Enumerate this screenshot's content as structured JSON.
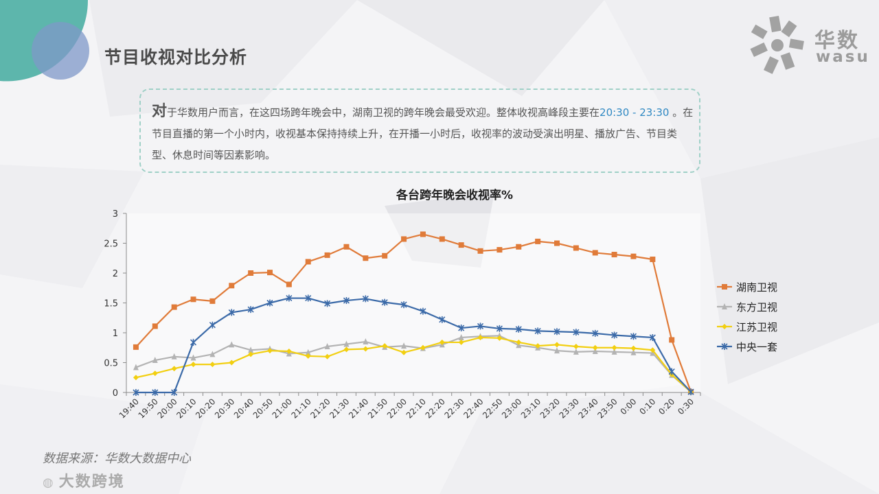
{
  "page": {
    "title": "节目收视对比分析",
    "logo_cn": "华数",
    "logo_en": "wasu",
    "note": {
      "lead": "对",
      "part1": "于华数用户而言，在这四场跨年晚会中，湖南卫视的跨年晚会最受欢迎。整体收视高峰段主要在",
      "highlight": "20:30 - 23:30",
      "part2": " 。在节目直播的第一个小时内，收视基本保持持续上升，在开播一小时后，收视率的波动受演出明星、播放广告、节目类型、休息时间等因素影响。"
    },
    "source": "数据来源：华数大数据中心",
    "brand": "大数跨境"
  },
  "chart_data": {
    "type": "line",
    "title": "各台跨年晚会收视率%",
    "xlabel": "",
    "ylabel": "",
    "ylim": [
      0,
      3
    ],
    "yticks": [
      "0",
      "0.5",
      "1",
      "1.5",
      "2",
      "2.5",
      "3"
    ],
    "grid": false,
    "legend_position": "right",
    "categories": [
      "19:40",
      "19:50",
      "20:00",
      "20:10",
      "20:20",
      "20:30",
      "20:40",
      "20:50",
      "21:00",
      "21:10",
      "21:20",
      "21:30",
      "21:40",
      "21:50",
      "22:00",
      "22:10",
      "22:20",
      "22:30",
      "22:40",
      "22:50",
      "23:00",
      "23:10",
      "23:20",
      "23:30",
      "23:40",
      "23:50",
      "0:00",
      "0:10",
      "0:20",
      "0:30"
    ],
    "series": [
      {
        "name": "湖南卫视",
        "color": "#e07b39",
        "marker": "square",
        "values": [
          0.76,
          1.11,
          1.43,
          1.56,
          1.53,
          1.79,
          2.0,
          2.01,
          1.81,
          2.19,
          2.3,
          2.44,
          2.25,
          2.29,
          2.57,
          2.65,
          2.57,
          2.47,
          2.37,
          2.39,
          2.44,
          2.53,
          2.5,
          2.42,
          2.34,
          2.31,
          2.28,
          2.23,
          0.88,
          0.01
        ]
      },
      {
        "name": "东方卫视",
        "color": "#b3b3b3",
        "marker": "triangle",
        "values": [
          0.42,
          0.54,
          0.6,
          0.58,
          0.64,
          0.8,
          0.71,
          0.73,
          0.65,
          0.67,
          0.77,
          0.81,
          0.85,
          0.76,
          0.78,
          0.74,
          0.8,
          0.92,
          0.94,
          0.95,
          0.79,
          0.75,
          0.7,
          0.68,
          0.69,
          0.68,
          0.67,
          0.66,
          0.29,
          0.01
        ]
      },
      {
        "name": "江苏卫视",
        "color": "#f2cf10",
        "marker": "diamond",
        "values": [
          0.25,
          0.32,
          0.4,
          0.47,
          0.47,
          0.5,
          0.64,
          0.7,
          0.69,
          0.61,
          0.6,
          0.72,
          0.73,
          0.78,
          0.67,
          0.75,
          0.84,
          0.84,
          0.92,
          0.91,
          0.84,
          0.78,
          0.8,
          0.77,
          0.75,
          0.75,
          0.74,
          0.71,
          0.3,
          0.01
        ]
      },
      {
        "name": "中央一套",
        "color": "#3b6aa8",
        "marker": "star",
        "values": [
          0.0,
          0.0,
          0.0,
          0.84,
          1.13,
          1.34,
          1.39,
          1.5,
          1.58,
          1.58,
          1.49,
          1.54,
          1.57,
          1.51,
          1.47,
          1.36,
          1.22,
          1.08,
          1.11,
          1.07,
          1.06,
          1.03,
          1.02,
          1.01,
          0.99,
          0.96,
          0.94,
          0.92,
          0.35,
          0.01
        ]
      }
    ]
  }
}
